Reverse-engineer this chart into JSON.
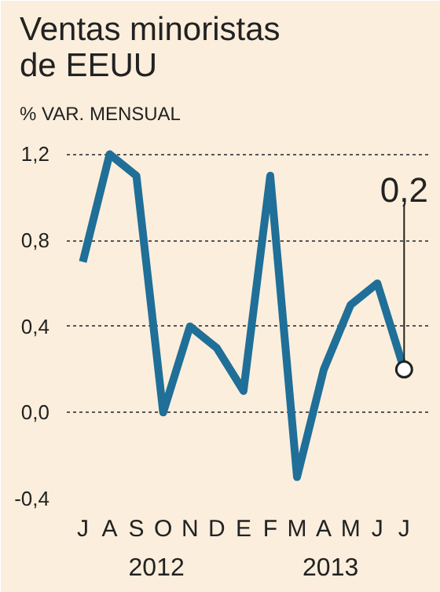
{
  "chart_data": {
    "type": "line",
    "title": "Ventas minoristas\nde EEUU",
    "subtitle": "% VAR. MENSUAL",
    "categories": [
      "J",
      "A",
      "S",
      "O",
      "N",
      "D",
      "E",
      "F",
      "M",
      "A",
      "M",
      "J",
      "J"
    ],
    "series": [
      {
        "color": "#1f6f98",
        "values": [
          0.7,
          1.2,
          1.1,
          0.0,
          0.4,
          0.3,
          0.1,
          1.1,
          -0.3,
          0.2,
          0.5,
          0.6,
          0.2
        ],
        "value_labels": [
          null,
          null,
          null,
          null,
          null,
          null,
          null,
          null,
          null,
          null,
          null,
          null,
          "0,2"
        ]
      }
    ],
    "ylim": [
      -0.4,
      1.3
    ],
    "yticks": [
      {
        "value": -0.4,
        "label": "-0,4"
      },
      {
        "value": 0.0,
        "label": "0,0"
      },
      {
        "value": 0.4,
        "label": "0,4"
      },
      {
        "value": 0.8,
        "label": "0,8"
      },
      {
        "value": 1.2,
        "label": "1,2"
      }
    ],
    "grid": "y",
    "line_style": "solid",
    "marker": "none",
    "annotations": [
      "2012",
      "2013"
    ]
  }
}
